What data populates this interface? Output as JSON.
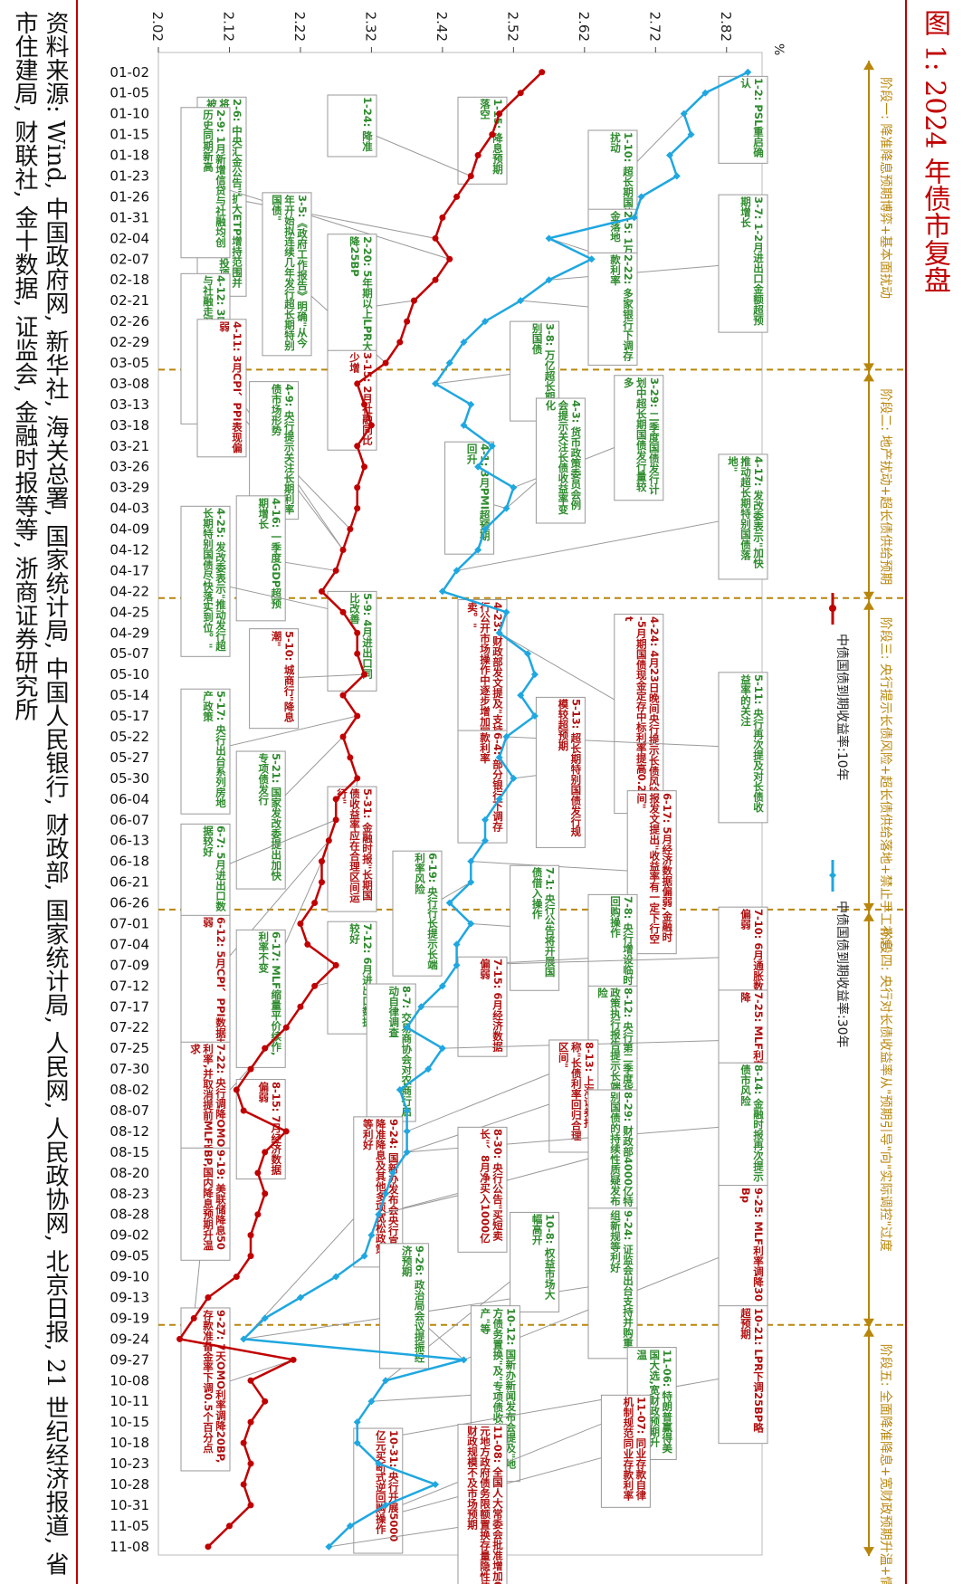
{
  "title": "图 1:   2024 年债市复盘",
  "source": "资料来源: Wind, 中国政府网, 新华社, 海关总署, 国家统计局, 中国人民银行, 财政部, 国家统计局, 人民网, 人民政协网, 北京日报, 21 世纪经济报道, 省市住建局, 财联社, 金十数据, 证监会, 金融时报等等, 浙商证券研究所",
  "colors": {
    "red": "#c00000",
    "blue": "#1fa7e0",
    "gold": "#b8860b",
    "green": "#2e8b2e",
    "darkred": "#b01010"
  },
  "chart_data": {
    "type": "line",
    "unit": "%",
    "ylim": [
      2.02,
      2.87
    ],
    "yticks": [
      "2.02",
      "2.12",
      "2.22",
      "2.32",
      "2.42",
      "2.52",
      "2.62",
      "2.72",
      "2.82"
    ],
    "categories": [
      "01-02",
      "01-05",
      "01-10",
      "01-15",
      "01-18",
      "01-23",
      "01-26",
      "01-31",
      "02-04",
      "02-07",
      "02-18",
      "02-21",
      "02-26",
      "02-29",
      "03-05",
      "03-08",
      "03-13",
      "03-18",
      "03-21",
      "03-26",
      "03-29",
      "04-03",
      "04-09",
      "04-12",
      "04-17",
      "04-22",
      "04-25",
      "04-29",
      "05-07",
      "05-10",
      "05-14",
      "05-17",
      "05-22",
      "05-27",
      "05-30",
      "06-04",
      "06-07",
      "06-13",
      "06-18",
      "06-21",
      "06-26",
      "07-01",
      "07-04",
      "07-09",
      "07-12",
      "07-17",
      "07-22",
      "07-25",
      "07-30",
      "08-02",
      "08-07",
      "08-12",
      "08-15",
      "08-20",
      "08-23",
      "08-28",
      "09-02",
      "09-05",
      "09-10",
      "09-13",
      "09-19",
      "09-24",
      "09-27",
      "10-08",
      "10-11",
      "10-15",
      "10-18",
      "10-23",
      "10-28",
      "10-31",
      "11-05",
      "11-08"
    ],
    "series": [
      {
        "name": "中债国债到期收益率:10年",
        "color": "#c00000",
        "values": [
          2.56,
          2.53,
          2.5,
          2.49,
          2.47,
          2.46,
          2.44,
          2.42,
          2.41,
          2.43,
          2.41,
          2.38,
          2.37,
          2.36,
          2.34,
          2.3,
          2.31,
          2.32,
          2.3,
          2.31,
          2.3,
          2.3,
          2.29,
          2.28,
          2.27,
          2.25,
          2.28,
          2.3,
          2.3,
          2.31,
          2.28,
          2.3,
          2.28,
          2.29,
          2.3,
          2.27,
          2.27,
          2.26,
          2.25,
          2.25,
          2.24,
          2.22,
          2.23,
          2.27,
          2.24,
          2.22,
          2.2,
          2.17,
          2.15,
          2.13,
          2.14,
          2.2,
          2.17,
          2.16,
          2.17,
          2.16,
          2.15,
          2.15,
          2.13,
          2.09,
          2.07,
          2.05,
          2.21,
          2.15,
          2.17,
          2.15,
          2.14,
          2.15,
          2.14,
          2.15,
          2.12,
          2.09
        ]
      },
      {
        "name": "中债国债到期收益率:30年",
        "color": "#1fa7e0",
        "values": [
          2.85,
          2.79,
          2.76,
          2.77,
          2.74,
          2.75,
          2.7,
          2.69,
          2.57,
          2.63,
          2.57,
          2.53,
          2.48,
          2.45,
          2.43,
          2.41,
          2.46,
          2.45,
          2.49,
          2.47,
          2.52,
          2.51,
          2.48,
          2.47,
          2.44,
          2.42,
          2.51,
          2.5,
          2.54,
          2.55,
          2.53,
          2.55,
          2.51,
          2.5,
          2.52,
          2.5,
          2.48,
          2.48,
          2.46,
          2.46,
          2.43,
          2.46,
          2.44,
          2.44,
          2.42,
          2.39,
          2.37,
          2.42,
          2.4,
          2.36,
          2.37,
          2.37,
          2.37,
          2.35,
          2.34,
          2.33,
          2.32,
          2.31,
          2.27,
          2.22,
          2.17,
          2.14,
          2.45,
          2.34,
          2.32,
          2.3,
          2.3,
          2.33,
          2.41,
          2.34,
          2.29,
          2.26
        ]
      }
    ],
    "legend": "bottom",
    "phases": [
      {
        "label": "阶段一: 降准降息预期博弈+基本面扰动",
        "from": "01-02",
        "to": "03-05"
      },
      {
        "label": "阶段二: 地产扰动+超长债供给预期",
        "from": "03-08",
        "to": "04-22"
      },
      {
        "label": "阶段三: 央行提示长债风险+超长债供给落地+禁止手工补息",
        "from": "04-25",
        "to": "06-26"
      },
      {
        "label": "阶段四: 央行对长债收益率从\"预期引导\"向\"实际调控\"过度",
        "from": "07-01",
        "to": "09-19"
      },
      {
        "label": "阶段五: 全面降准降息+宽财政预期升温+情绪博弈",
        "from": "09-24",
        "to": "11-08"
      }
    ],
    "annotations": [
      {
        "text": "1-2: PSL重启确认",
        "color": "green",
        "col": 4,
        "r": 0.8,
        "date": "01-02",
        "s": 1
      },
      {
        "text": "1-10: 超长期国债信息扰动",
        "color": "green",
        "col": 3,
        "r": 3.4,
        "date": "01-10",
        "s": 1
      },
      {
        "text": "1-15: 降息预期落空",
        "color": "green",
        "col": 2,
        "r": 1.8,
        "date": "01-15",
        "s": 0
      },
      {
        "text": "1-24: 降准",
        "color": "green",
        "col": 1,
        "r": 1.7,
        "date": "01-23",
        "s": 0
      },
      {
        "text": "2-6: 中央汇金公告\"扩大ETP增持范围并将持续加大力度,扩大规模\";通州城投项目被叫停;融资担保政策",
        "color": "green",
        "col": 0,
        "r": 1.8,
        "date": "02-04",
        "s": 0
      },
      {
        "text": "2-9: 1月新增信贷与社融均创历史同期新高",
        "color": "green",
        "col": -1,
        "r": 2.3,
        "date": "02-07",
        "s": 0
      },
      {
        "text": "2-5: 1万亿降准资金落地",
        "color": "green",
        "col": 3,
        "r": 7.2,
        "date": "02-04",
        "s": 1
      },
      {
        "text": "3-7: 1-2月进出口金额超预期增长",
        "color": "green",
        "col": 4,
        "r": 6.5,
        "date": "02-18",
        "s": 1
      },
      {
        "text": "2-22: 多家银行下调存款利率",
        "color": "green",
        "col": 3,
        "r": 9.3,
        "date": "02-21",
        "s": 1
      },
      {
        "text": "3-5:《政府工作报告》明确\"从今年开始拟连续几年发行超长期特别国债\"",
        "color": "green",
        "col": 0.5,
        "r": 6.4,
        "date": "03-05",
        "s": 0
      },
      {
        "text": "2-20: 5年期以上LPR大幅调降25BP",
        "color": "green",
        "col": 1,
        "r": 8.4,
        "date": "02-21",
        "s": 0
      },
      {
        "text": "3-8: 万亿超长期特别国债",
        "color": "green",
        "col": 2.4,
        "r": 12.6,
        "date": "03-08",
        "s": 1
      },
      {
        "text": "4-12: 3月进出口、新增信贷与社融走弱",
        "color": "green",
        "col": -1,
        "r": 10.3,
        "date": "04-12",
        "s": 0
      },
      {
        "text": "3-15: 2月社融同比少增",
        "color": "darkred",
        "col": 1,
        "r": 14,
        "date": "03-18",
        "s": 0
      },
      {
        "text": "4-11: 3月CPI、PPI表现偏弱",
        "color": "darkred",
        "col": 0,
        "r": 12.5,
        "date": "04-12",
        "s": 0
      },
      {
        "text": "4-9: 央行提示关注长期利率债市场形势",
        "color": "green",
        "col": 0.4,
        "r": 15.5,
        "date": "04-09",
        "s": 0
      },
      {
        "text": "3-29: 二季度国债发行计划中超长期国债发行量较多",
        "color": "green",
        "col": 3.2,
        "r": 15.2,
        "date": "03-29",
        "s": 1
      },
      {
        "text": "4-3: 货币政策委员会例会提示关注长债收益率变化",
        "color": "green",
        "col": 2.6,
        "r": 16.3,
        "date": "04-03",
        "s": 1
      },
      {
        "text": "4-1: 3月PMI超预期回升",
        "color": "green",
        "col": 1.9,
        "r": 18.4,
        "date": "04-03",
        "s": 1
      },
      {
        "text": "4-17: 发改委表示\"加快推动超长期特别国债落地\"",
        "color": "green",
        "col": 4,
        "r": 19,
        "date": "04-17",
        "s": 1
      },
      {
        "text": "4-16: 一季度GDP超预期增长",
        "color": "green",
        "col": 0.3,
        "r": 21,
        "date": "04-17",
        "s": 0
      },
      {
        "text": "4-25: 发改委表示\"推动发行超长期特别国债尽快落实到位。\"",
        "color": "green",
        "col": -0.5,
        "r": 21.5,
        "date": "04-25",
        "s": 0
      },
      {
        "text": "4-23: 财政部发文提及\"支持在央行公开市场操作中逐步增加国债买卖。\"",
        "color": "darkred",
        "col": 2,
        "r": 26,
        "date": "04-25",
        "s": 1
      },
      {
        "text": "4-24: 4月23日晚间央行提示长债风险;3-5月期国债现金定存中标利率提高0.2pct",
        "color": "darkred",
        "col": 3.2,
        "r": 26.7,
        "date": "04-29",
        "s": 1
      },
      {
        "text": "5-9: 4月进出口同比改善",
        "color": "green",
        "col": 1,
        "r": 25.6,
        "date": "05-10",
        "s": 0
      },
      {
        "text": "5-10: 城商行\"降息潮\"",
        "color": "darkred",
        "col": 0.4,
        "r": 27.4,
        "date": "05-10",
        "s": 0
      },
      {
        "text": "5-17: 央行出台系列房地产政策",
        "color": "green",
        "col": -0.7,
        "r": 30.3,
        "date": "05-17",
        "s": 0
      },
      {
        "text": "5-11: 央行再次提及对长债收益率的关注",
        "color": "green",
        "col": 4,
        "r": 29.5,
        "date": "05-22",
        "s": 1
      },
      {
        "text": "5-13: 超长期特别国债发行规模较超预期",
        "color": "darkred",
        "col": 2.6,
        "r": 30.7,
        "date": "05-30",
        "s": 1
      },
      {
        "text": "6-4: 部分银行下调存款利率",
        "color": "darkred",
        "col": 2,
        "r": 32.3,
        "date": "06-04",
        "s": 1
      },
      {
        "text": "5-21: 国家发改委提出加快专项债发行",
        "color": "green",
        "col": 0.3,
        "r": 33.3,
        "date": "05-22",
        "s": 0
      },
      {
        "text": "5-31: 金融时报\"长期国债收益率应在合理区间运行\"",
        "color": "darkred",
        "col": 1,
        "r": 35,
        "date": "05-30",
        "s": 0
      },
      {
        "text": "6-17: 5月经济数据偏弱,金融时报发文提出\"收益率有一定下行空间\"",
        "color": "darkred",
        "col": 3.3,
        "r": 35.2,
        "date": "06-18",
        "s": 1
      },
      {
        "text": "6-7: 5月进出口数据较好",
        "color": "green",
        "col": -0.7,
        "r": 36.8,
        "date": "06-07",
        "s": 0
      },
      {
        "text": "6-19: 央行行长提示长端利率风险",
        "color": "green",
        "col": 1.5,
        "r": 38.1,
        "date": "06-21",
        "s": 1
      },
      {
        "text": "7-1: 央行公告将开展国债借入操作",
        "color": "green",
        "col": 2.4,
        "r": 38.8,
        "date": "07-01",
        "s": 1
      },
      {
        "text": "7-8: 央行增设临时正逆回购操作",
        "color": "green",
        "col": 3,
        "r": 40.2,
        "date": "07-09",
        "s": 1
      },
      {
        "text": "7-10: 6月通胀数据偏弱",
        "color": "darkred",
        "col": 4,
        "r": 40.8,
        "date": "07-09",
        "s": 1
      },
      {
        "text": "6-12: 5月CPI、PPI数据走弱",
        "color": "darkred",
        "col": -0.6,
        "r": 41.2,
        "date": "06-13",
        "s": 0
      },
      {
        "text": "6-17: MLF缩量平价续作,利率不变",
        "color": "green",
        "col": 0.3,
        "r": 41.9,
        "date": "06-18",
        "s": 0
      },
      {
        "text": "7-12: 6月进出口数据较好",
        "color": "green",
        "col": 1,
        "r": 41.5,
        "date": "07-12",
        "s": 0
      },
      {
        "text": "7-15: 6月经济数据偏弱",
        "color": "darkred",
        "col": 2,
        "r": 43.2,
        "date": "07-17",
        "s": 1
      },
      {
        "text": "8-7: 交易商协会对农商行启动自律调查",
        "color": "green",
        "col": 1.3,
        "r": 44.5,
        "date": "08-07",
        "s": 1
      },
      {
        "text": "8-12: 央行第二季度货币政策执行报告提示长端风险",
        "color": "green",
        "col": 3,
        "r": 44.6,
        "date": "08-12",
        "s": 1
      },
      {
        "text": "7-25: MLF利率调降",
        "color": "darkred",
        "col": 4,
        "r": 44.8,
        "date": "07-25",
        "s": 1
      },
      {
        "text": "8-13: 上海证券报称\"长债利率回归合理区间\"",
        "color": "darkred",
        "col": 2.7,
        "r": 47.2,
        "date": "08-15",
        "s": 1
      },
      {
        "text": "8-14: 金融时报再次提示债市风险",
        "color": "green",
        "col": 4,
        "r": 48.3,
        "date": "08-15",
        "s": 1
      },
      {
        "text": "7-22: 央行调降OMO、LPR利率,并取消提前MLF质押品要求",
        "color": "darkred",
        "col": -0.4,
        "r": 47.3,
        "date": "07-22",
        "s": 0
      },
      {
        "text": "8-15: 7月经济数据偏弱",
        "color": "darkred",
        "col": 0.3,
        "r": 49.1,
        "date": "08-15",
        "s": 0
      },
      {
        "text": "8-29: 财政部4000亿特别国债的持续性质疑发布",
        "color": "green",
        "col": 3,
        "r": 49.6,
        "date": "08-28",
        "s": 1
      },
      {
        "text": "9-24: 国新办发布会央行宣布降准降息及其他多项宽松政策等利好",
        "color": "darkred",
        "col": 1.2,
        "r": 50.9,
        "date": "09-24",
        "s": 1
      },
      {
        "text": "8-30: 央行公告\"买短卖长\"、8月净买入1000亿",
        "color": "darkred",
        "col": 2,
        "r": 51.4,
        "date": "08-28",
        "s": 1
      },
      {
        "text": "9-19: 美联储降息50BP,国内降息预期升温",
        "color": "darkred",
        "col": -0.4,
        "r": 52.4,
        "date": "09-19",
        "s": 0
      },
      {
        "text": "9-25: MLF利率调降30Bp",
        "color": "darkred",
        "col": 4,
        "r": 54.2,
        "date": "09-27",
        "s": 1
      },
      {
        "text": "9-24: 证监会出台支持并购重组新规等利好",
        "color": "green",
        "col": 3,
        "r": 55.3,
        "date": "09-24",
        "s": 1
      },
      {
        "text": "10-8: 权益市场大幅高开",
        "color": "green",
        "col": 2.4,
        "r": 55.5,
        "date": "10-08",
        "s": 1
      },
      {
        "text": "9-26: 政治局会议提振经济预期",
        "color": "green",
        "col": 1.4,
        "r": 57,
        "date": "09-27",
        "s": 1
      },
      {
        "text": "10-12: 国新办新闻发布会提及\"地方债务置换\"及\"专项债收储房地产\"等",
        "color": "green",
        "col": 2.1,
        "r": 60,
        "date": "10-11",
        "s": 1
      },
      {
        "text": "10-21: LPR下调25BP略超预期",
        "color": "darkred",
        "col": 4,
        "r": 60,
        "date": "10-18",
        "s": 1
      },
      {
        "text": "11-06: 特朗普赢得美国大选,宽财政预期升温",
        "color": "green",
        "col": 3.3,
        "r": 62,
        "date": "11-05",
        "s": 1
      },
      {
        "text": "11-07: 同业存款自律机制规范同业存款利率",
        "color": "darkred",
        "col": 3.1,
        "r": 64.3,
        "date": "11-05",
        "s": 1
      },
      {
        "text": "10-31: 央行开展5000亿元买断式逆回购操作",
        "color": "darkred",
        "col": 1.2,
        "r": 65.9,
        "date": "10-31",
        "s": 1
      },
      {
        "text": "11-08: 全国人大常委会批准增加6万亿元地方政府债务限额置换存量隐性债务,宽财政规模不及市场预期",
        "color": "darkred",
        "col": 2,
        "r": 65.7,
        "date": "11-08",
        "s": 1
      },
      {
        "text": "9-27: 7天OMO利率调降20BP,存款准备金率下调0.5个百分点",
        "color": "darkred",
        "col": -0.3,
        "r": 60.1,
        "date": "09-27",
        "s": 0
      }
    ]
  }
}
